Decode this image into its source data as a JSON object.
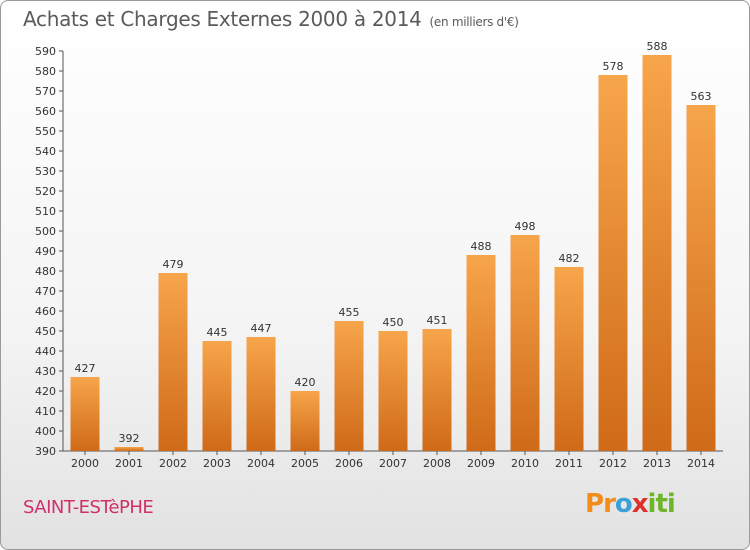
{
  "chart_data": {
    "type": "bar",
    "title": "Achats et Charges Externes 2000 à 2014",
    "subtitle": "(en milliers d'€)",
    "categories": [
      "2000",
      "2001",
      "2002",
      "2003",
      "2004",
      "2005",
      "2006",
      "2007",
      "2008",
      "2009",
      "2010",
      "2011",
      "2012",
      "2013",
      "2014"
    ],
    "values": [
      427,
      392,
      479,
      445,
      447,
      420,
      455,
      450,
      451,
      488,
      498,
      482,
      578,
      588,
      563
    ],
    "ylim": [
      390,
      590
    ],
    "yticks": [
      390,
      400,
      410,
      420,
      430,
      440,
      450,
      460,
      470,
      480,
      490,
      500,
      510,
      520,
      530,
      540,
      550,
      560,
      570,
      580,
      590
    ],
    "grid": false,
    "legend": "none",
    "bar_color_light": "#f7a54b",
    "bar_color_dark": "#cf6a18"
  },
  "footer": {
    "city": "SAINT-ESTèPHE",
    "logo_letters": [
      "P",
      "r",
      "o",
      "x",
      "i",
      "t",
      "i"
    ],
    "logo_colors": [
      "#f28c1a",
      "#f28c1a",
      "#3aa0d8",
      "#e0302a",
      "#6fb52c",
      "#6fb52c",
      "#6fb52c"
    ]
  }
}
